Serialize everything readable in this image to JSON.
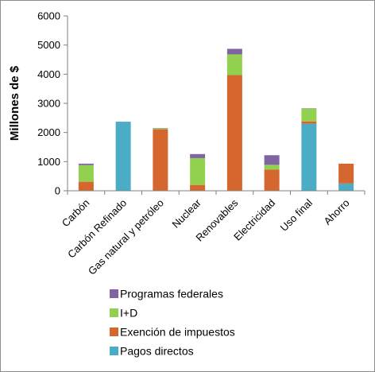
{
  "chart_data": {
    "type": "bar",
    "stacked": true,
    "categories": [
      "Carbón",
      "Carbón Refinado",
      "Gas natural y petróleo",
      "Nuclear",
      "Renovables",
      "Electricidad",
      "Uso final",
      "Ahorro"
    ],
    "series": [
      {
        "name": "Pagos directos",
        "color": "#4BACC6",
        "values": [
          0,
          2370,
          0,
          0,
          0,
          0,
          2300,
          250
        ]
      },
      {
        "name": "Exención de impuestos",
        "color": "#D4662E",
        "values": [
          310,
          0,
          2110,
          200,
          3970,
          730,
          80,
          680
        ]
      },
      {
        "name": "I+D",
        "color": "#92D050",
        "values": [
          570,
          0,
          30,
          920,
          710,
          160,
          440,
          0
        ]
      },
      {
        "name": "Programas federales",
        "color": "#8064A2",
        "values": [
          50,
          0,
          10,
          140,
          190,
          330,
          10,
          0
        ]
      }
    ],
    "title": "",
    "xlabel": "",
    "ylabel": "Millones de $",
    "ylim": [
      0,
      6000
    ],
    "yticks": [
      "0",
      "1000",
      "2000",
      "3000",
      "4000",
      "5000",
      "6000"
    ],
    "legend_position": "bottom",
    "legend_order": [
      "Programas federales",
      "I+D",
      "Exención de impuestos",
      "Pagos directos"
    ],
    "grid": false
  }
}
